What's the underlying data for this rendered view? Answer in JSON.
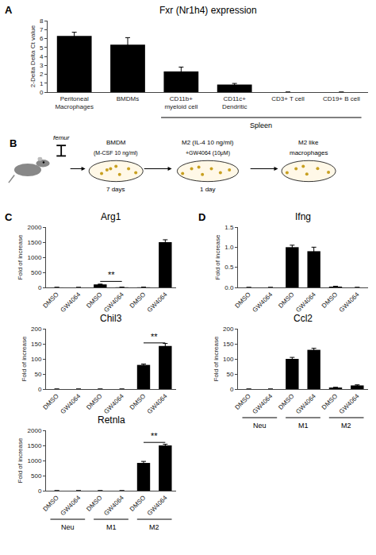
{
  "chart_data": [
    {
      "type": "bar",
      "title": "Fxr (Nr1h4) expression",
      "categories": [
        "Peritoneal\nMacrophages",
        "BMDMs",
        "CD11b+\nmyeloid cell",
        "CD11c+\nDendritic",
        "CD3+ T cell",
        "CD19+ B cell"
      ],
      "values": [
        6.3,
        5.3,
        2.3,
        0.85,
        0.0,
        0.0
      ],
      "errors": [
        0.4,
        0.8,
        0.5,
        0.12,
        0.0,
        0.0
      ],
      "ylabel": "2-Delta Delta Ct value",
      "ylim": [
        0,
        8
      ],
      "yticks": [
        0,
        1,
        2,
        3,
        4,
        5,
        6,
        7,
        8
      ],
      "color": "#000000",
      "grid": false,
      "annotations": [
        {
          "text": "A"
        }
      ],
      "groups": [
        {
          "name": "Spleen",
          "span": [
            2,
            5
          ]
        }
      ]
    },
    {
      "type": "diagram",
      "annotations": [
        {
          "text": "B"
        },
        {
          "text": "femur"
        },
        {
          "text": "BMDM"
        },
        {
          "text": "(M-CSF 10 ng/ml)"
        },
        {
          "text": "7 days"
        },
        {
          "text": "M2 (IL-4 10 ng/ml)"
        },
        {
          "text": "+GW4064 (10μM)"
        },
        {
          "text": "1 day"
        },
        {
          "text": "M2 like"
        },
        {
          "text": "macrophages"
        }
      ]
    },
    {
      "type": "bar",
      "title": "Arg1",
      "categories": [
        "DMSO",
        "GW4064",
        "DMSO",
        "GW4064",
        "DMSO",
        "GW4064"
      ],
      "values": [
        1,
        0,
        100,
        5,
        5,
        1500
      ],
      "errors": [
        0,
        0,
        10,
        2,
        5,
        80
      ],
      "ylabel": "Fold of increase",
      "ylim": [
        0,
        2000
      ],
      "yticks": [
        0,
        500,
        1000,
        1500,
        2000
      ],
      "color": "#000000",
      "grid": false,
      "annotations": [
        {
          "text": "C"
        },
        {
          "text": "**",
          "span": [
            2,
            3
          ]
        }
      ]
    },
    {
      "type": "bar",
      "title": "Chil3",
      "categories": [
        "DMSO",
        "GW4064",
        "DMSO",
        "GW4064",
        "DMSO",
        "GW4064"
      ],
      "values": [
        0,
        0,
        0,
        0,
        80,
        143
      ],
      "errors": [
        0,
        0,
        0,
        0,
        3,
        8
      ],
      "ylabel": "Fold of increase",
      "ylim": [
        0,
        200
      ],
      "yticks": [
        0,
        50,
        100,
        150,
        200
      ],
      "color": "#000000",
      "grid": false,
      "annotations": [
        {
          "text": "**",
          "span": [
            4,
            5
          ]
        }
      ]
    },
    {
      "type": "bar",
      "title": "Retnla",
      "categories": [
        "DMSO",
        "GW4064",
        "DMSO",
        "GW4064",
        "DMSO",
        "GW4064"
      ],
      "values": [
        0,
        0,
        0,
        0,
        920,
        1500
      ],
      "errors": [
        0,
        0,
        0,
        0,
        50,
        40
      ],
      "ylabel": "Fold of increase",
      "ylim": [
        0,
        2000
      ],
      "yticks": [
        0,
        500,
        1000,
        1500,
        2000
      ],
      "color": "#000000",
      "grid": false,
      "annotations": [
        {
          "text": "**",
          "span": [
            4,
            5
          ]
        }
      ],
      "groups": [
        {
          "name": "Neu",
          "span": [
            0,
            1
          ]
        },
        {
          "name": "M1",
          "span": [
            2,
            3
          ]
        },
        {
          "name": "M2",
          "span": [
            4,
            5
          ]
        }
      ]
    },
    {
      "type": "bar",
      "title": "Ifng",
      "categories": [
        "DMSO",
        "GW4064",
        "DMSO",
        "GW4064",
        "DMSO",
        "GW4064"
      ],
      "values": [
        0,
        0,
        1.0,
        0.9,
        0.02,
        0.0
      ],
      "errors": [
        0,
        0,
        0.05,
        0.1,
        0.01,
        0.0
      ],
      "ylabel": "Fold of increase",
      "ylim": [
        0,
        1.5
      ],
      "yticks": [
        {
          "value": 0,
          "label": "0.0"
        },
        0.5,
        {
          "value": 1.0,
          "label": "1.0"
        },
        1.5
      ],
      "color": "#000000",
      "grid": false,
      "annotations": [
        {
          "text": "D"
        }
      ]
    },
    {
      "type": "bar",
      "title": "Ccl2",
      "categories": [
        "DMSO",
        "GW4064",
        "DMSO",
        "GW4064",
        "DMSO",
        "GW4064"
      ],
      "values": [
        0,
        0,
        100,
        130,
        5,
        12
      ],
      "errors": [
        0,
        0,
        5,
        5,
        1,
        2
      ],
      "ylabel": "Fold of increase",
      "ylim": [
        0,
        200
      ],
      "yticks": [
        0,
        50,
        100,
        150,
        200
      ],
      "color": "#000000",
      "grid": false,
      "groups": [
        {
          "name": "Neu",
          "span": [
            0,
            1
          ]
        },
        {
          "name": "M1",
          "span": [
            2,
            3
          ]
        },
        {
          "name": "M2",
          "span": [
            4,
            5
          ]
        }
      ]
    }
  ]
}
